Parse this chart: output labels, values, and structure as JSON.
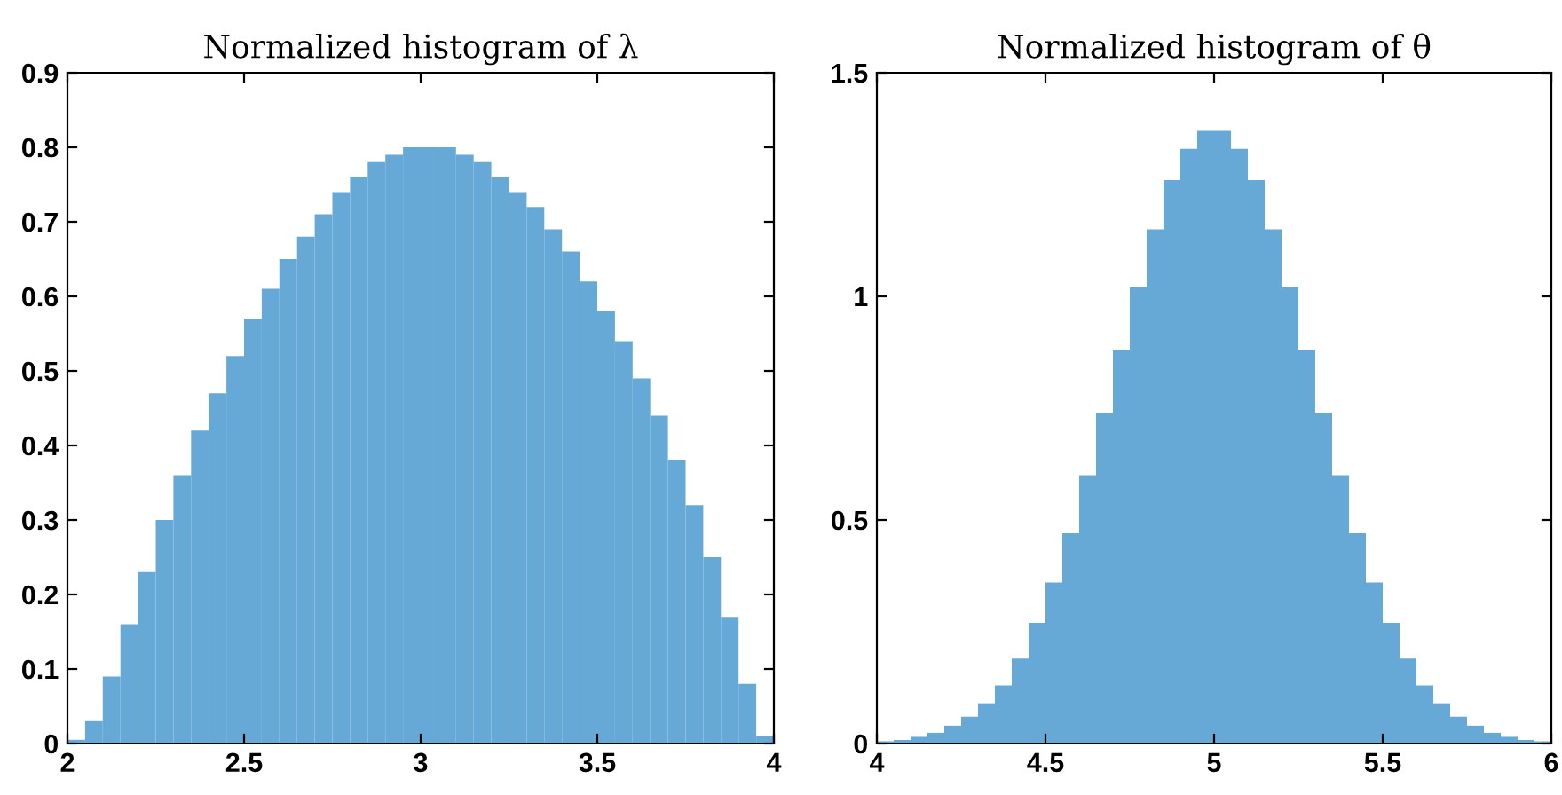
{
  "chart_data": [
    {
      "type": "histogram",
      "title": "Normalized histogram of λ",
      "color": "#66a9d6",
      "bins": [
        2.0,
        2.05,
        2.1,
        2.15,
        2.2,
        2.25,
        2.3,
        2.35,
        2.4,
        2.45,
        2.5,
        2.55,
        2.6,
        2.65,
        2.7,
        2.75,
        2.8,
        2.85,
        2.9,
        2.95,
        3.0,
        3.05,
        3.1,
        3.15,
        3.2,
        3.25,
        3.3,
        3.35,
        3.4,
        3.45,
        3.5,
        3.55,
        3.6,
        3.65,
        3.7,
        3.75,
        3.8,
        3.85,
        3.9,
        3.95,
        4.0
      ],
      "values": [
        0.005,
        0.03,
        0.09,
        0.16,
        0.23,
        0.3,
        0.36,
        0.42,
        0.47,
        0.52,
        0.57,
        0.61,
        0.65,
        0.68,
        0.71,
        0.74,
        0.76,
        0.78,
        0.79,
        0.8,
        0.8,
        0.8,
        0.79,
        0.78,
        0.76,
        0.74,
        0.72,
        0.69,
        0.66,
        0.62,
        0.58,
        0.54,
        0.49,
        0.44,
        0.38,
        0.32,
        0.25,
        0.17,
        0.08,
        0.01
      ],
      "xlim": [
        2,
        4
      ],
      "xticks": [
        2,
        2.5,
        3,
        3.5,
        4
      ],
      "ylim": [
        0,
        0.9
      ],
      "yticks": [
        0,
        0.1,
        0.2,
        0.3,
        0.4,
        0.5,
        0.6,
        0.7,
        0.8,
        0.9
      ],
      "grid": false
    },
    {
      "type": "histogram",
      "title": "Normalized histogram of θ",
      "color": "#66a9d6",
      "bins": [
        4.0,
        4.05,
        4.1,
        4.15,
        4.2,
        4.25,
        4.3,
        4.35,
        4.4,
        4.45,
        4.5,
        4.55,
        4.6,
        4.65,
        4.7,
        4.75,
        4.8,
        4.85,
        4.9,
        4.95,
        5.0,
        5.05,
        5.1,
        5.15,
        5.2,
        5.25,
        5.3,
        5.35,
        5.4,
        5.45,
        5.5,
        5.55,
        5.6,
        5.65,
        5.7,
        5.75,
        5.8,
        5.85,
        5.9,
        5.95,
        6.0
      ],
      "values": [
        0.005,
        0.008,
        0.015,
        0.024,
        0.04,
        0.06,
        0.09,
        0.13,
        0.19,
        0.27,
        0.36,
        0.47,
        0.6,
        0.74,
        0.88,
        1.02,
        1.15,
        1.26,
        1.33,
        1.37,
        1.37,
        1.33,
        1.26,
        1.15,
        1.02,
        0.88,
        0.74,
        0.6,
        0.47,
        0.36,
        0.27,
        0.19,
        0.13,
        0.09,
        0.06,
        0.04,
        0.024,
        0.015,
        0.008,
        0.005
      ],
      "xlim": [
        4,
        6
      ],
      "xticks": [
        4,
        4.5,
        5,
        5.5,
        6
      ],
      "ylim": [
        0,
        1.5
      ],
      "yticks": [
        0,
        0.5,
        1,
        1.5
      ],
      "grid": false
    }
  ]
}
